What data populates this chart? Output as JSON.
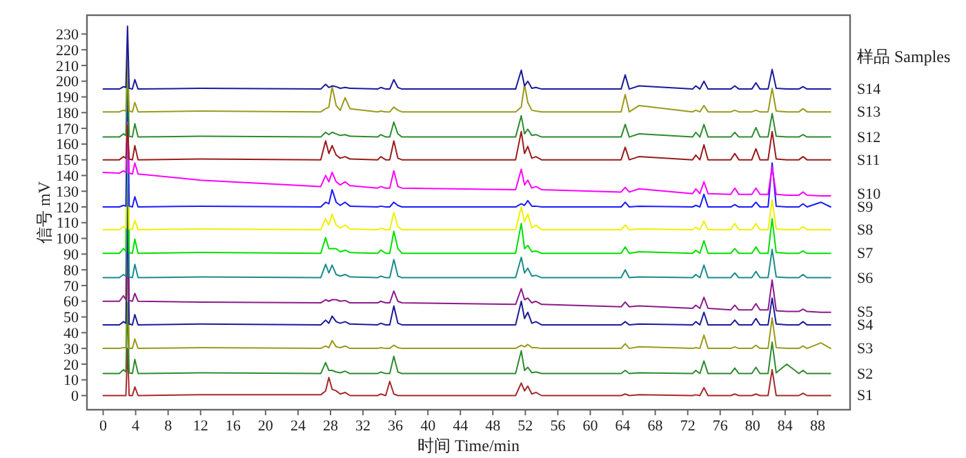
{
  "chart_data": {
    "type": "line",
    "xlabel": "时间 Time/min",
    "ylabel": "信号 mV",
    "legend_title": "样品 Samples",
    "legend": "right",
    "xlim": [
      -2,
      92
    ],
    "ylim": [
      -9,
      242
    ],
    "xticks": [
      0,
      4,
      8,
      12,
      16,
      20,
      24,
      28,
      32,
      36,
      40,
      44,
      48,
      52,
      56,
      60,
      64,
      68,
      72,
      76,
      80,
      84,
      88
    ],
    "yticks": [
      0,
      10,
      20,
      30,
      40,
      50,
      60,
      70,
      80,
      90,
      100,
      110,
      120,
      130,
      140,
      150,
      160,
      170,
      180,
      190,
      200,
      210,
      220,
      230
    ],
    "x": [
      0,
      2.0,
      2.5,
      2.8,
      3.0,
      3.2,
      3.6,
      3.9,
      4.3,
      12,
      26.8,
      27.4,
      27.8,
      28.2,
      28.7,
      29.2,
      29.8,
      30.4,
      33.8,
      34.2,
      34.8,
      35.3,
      35.8,
      36.3,
      36.8,
      50.8,
      51.5,
      51.9,
      52.3,
      52.8,
      53.3,
      54,
      63.8,
      64.3,
      64.8,
      66,
      72.6,
      73,
      73.5,
      74,
      74.5,
      77.3,
      77.8,
      78.3,
      79.9,
      80.4,
      80.9,
      81.9,
      82.4,
      82.9,
      84.2,
      85.7,
      86.2,
      86.7,
      88.4,
      89.6
    ],
    "series": [
      {
        "name": "S1",
        "color": "#a52a2a",
        "values": [
          0,
          0,
          0,
          0,
          30,
          0,
          0,
          5.5,
          0,
          0.5,
          0.5,
          3,
          11.5,
          4,
          3,
          1,
          2,
          0,
          0,
          1,
          0,
          9,
          1,
          0,
          0,
          0,
          8,
          3,
          6,
          1,
          2,
          0,
          0,
          1,
          0,
          0.5,
          0,
          0.5,
          0,
          5,
          0,
          0,
          1,
          0,
          0,
          1,
          0,
          0,
          16.5,
          0,
          0,
          0,
          1.5,
          0,
          0,
          0
        ]
      },
      {
        "name": "S2",
        "color": "#2e8b2e",
        "values": [
          14,
          14,
          16.5,
          15,
          59,
          14.5,
          14,
          23,
          14,
          14.5,
          14,
          21,
          16,
          16,
          15,
          14.5,
          15.5,
          14,
          14,
          15,
          14,
          14,
          25,
          15,
          14,
          14,
          28.5,
          16,
          18,
          14.5,
          15,
          14,
          14,
          16,
          14,
          14.5,
          14,
          16,
          14,
          22,
          14,
          14,
          17.5,
          14,
          14,
          18,
          14,
          14,
          34,
          14.5,
          20,
          14,
          16,
          14,
          14,
          14
        ]
      },
      {
        "name": "S3",
        "color": "#9a9a1a",
        "values": [
          30,
          30,
          30.5,
          30.5,
          90,
          30,
          30,
          36,
          30,
          30.5,
          30,
          31.5,
          30.5,
          35,
          31,
          30.5,
          31.5,
          30,
          30,
          30.5,
          30,
          30,
          32,
          30.5,
          30,
          30,
          32,
          31,
          32.5,
          30.5,
          30.5,
          30,
          30,
          33,
          30,
          31,
          30,
          30.5,
          30,
          38.5,
          30,
          30,
          31,
          30,
          30,
          32,
          30,
          30,
          49.5,
          30.5,
          30,
          30,
          31.5,
          30,
          33.5,
          30
        ]
      },
      {
        "name": "S4",
        "color": "#1a1a9a",
        "values": [
          45,
          45,
          47,
          46,
          120,
          45.5,
          45,
          51.5,
          45,
          45.5,
          45,
          48,
          46,
          50.5,
          47,
          46,
          47,
          45.5,
          45,
          46,
          45,
          45,
          57,
          46,
          45,
          45,
          60,
          49,
          53,
          46,
          47,
          45,
          45,
          47,
          45,
          45.5,
          45,
          47,
          45,
          53,
          45,
          45,
          48,
          45,
          45,
          49,
          45,
          45,
          62,
          45.5,
          45,
          45,
          47,
          45,
          45,
          45
        ]
      },
      {
        "name": "S5",
        "color": "#8b1a8b",
        "values": [
          60,
          60,
          63.5,
          61,
          150,
          60.5,
          60,
          65,
          60,
          59.5,
          59,
          61,
          60,
          61,
          61,
          60,
          60.5,
          59,
          59,
          60,
          59,
          59,
          66.5,
          60,
          59,
          58,
          68,
          61,
          62,
          59,
          60,
          58,
          56.5,
          59.5,
          56.5,
          57,
          55.5,
          57.5,
          55.5,
          62.5,
          55.5,
          54.5,
          57.5,
          54.5,
          54.5,
          58.5,
          54.5,
          54.5,
          73.5,
          54,
          53.5,
          53.5,
          55,
          53.5,
          53,
          53
        ]
      },
      {
        "name": "S6",
        "color": "#1a8b8b",
        "values": [
          75,
          75,
          77,
          76,
          180,
          75.5,
          75,
          83.5,
          75,
          75.5,
          75,
          83.5,
          78,
          83,
          77,
          76,
          77,
          75.5,
          75,
          76,
          75,
          75,
          86.5,
          76,
          75,
          75,
          88,
          78,
          81,
          76,
          76.5,
          75,
          75,
          80,
          75,
          75.5,
          75,
          77,
          75,
          83,
          75,
          75,
          78,
          75,
          75,
          79,
          75,
          75,
          93,
          75.5,
          75,
          75,
          77,
          75,
          75,
          75
        ]
      },
      {
        "name": "S7",
        "color": "#00e000",
        "values": [
          90.5,
          90.5,
          93.5,
          92,
          210.5,
          91,
          90.5,
          99.5,
          90.5,
          91,
          90.5,
          100.5,
          93.5,
          93.5,
          93.5,
          91.5,
          92.5,
          91,
          90.5,
          92.5,
          90.5,
          90.5,
          104.5,
          93.5,
          90.5,
          90.5,
          109.5,
          93.5,
          95.5,
          91.5,
          92,
          90.5,
          90.5,
          94.5,
          90.5,
          91.5,
          90.5,
          92.5,
          90.5,
          98.5,
          90.5,
          90.5,
          93.5,
          90.5,
          90.5,
          94.5,
          90.5,
          90.5,
          112.5,
          91,
          90.5,
          90.5,
          92,
          90.5,
          90.5,
          90.5
        ]
      },
      {
        "name": "S8",
        "color": "#f0f000",
        "values": [
          105.5,
          105.5,
          107.5,
          106.5,
          205.5,
          106,
          105.5,
          111.5,
          105.5,
          106,
          105.5,
          112.5,
          108.5,
          115.5,
          108.5,
          106.5,
          108.5,
          106,
          105.5,
          106.5,
          105.5,
          105.5,
          116.5,
          107.5,
          105.5,
          105.5,
          120,
          110.5,
          115.5,
          106.5,
          108.5,
          105.5,
          105.5,
          108.5,
          105.5,
          106,
          105.5,
          107,
          105.5,
          111,
          105.5,
          105.5,
          109.5,
          105.5,
          105.5,
          109.5,
          105.5,
          105.5,
          124.5,
          106,
          105.5,
          105.5,
          107.5,
          105.5,
          105.5,
          105.5
        ]
      },
      {
        "name": "S9",
        "color": "#1a1aff",
        "values": [
          120,
          120,
          121,
          120.5,
          200,
          120.5,
          120,
          126.5,
          120,
          120.5,
          120,
          123,
          122,
          131,
          123,
          121,
          123,
          120.5,
          120,
          120.5,
          120,
          120,
          123,
          121,
          120,
          120,
          122,
          121,
          124,
          120.5,
          120.5,
          120,
          120,
          123,
          120,
          120.5,
          120,
          121,
          120,
          128,
          120,
          120,
          121.5,
          120,
          120,
          123,
          120,
          120,
          148,
          120.5,
          120,
          120,
          122,
          120,
          123,
          120
        ]
      },
      {
        "name": "S10",
        "color": "#ff00ff",
        "values": [
          142,
          141.5,
          143,
          142,
          174,
          141.5,
          141,
          148,
          141,
          137,
          133,
          140,
          136,
          142,
          136,
          134,
          136,
          133.5,
          132,
          133,
          132,
          132,
          143,
          133,
          132,
          131,
          144,
          134,
          137,
          132,
          133,
          131,
          129.5,
          132.5,
          129.5,
          131.5,
          128.5,
          131.5,
          128.5,
          136,
          128.5,
          128,
          132,
          128,
          128,
          132,
          128,
          128,
          145.5,
          128,
          127.5,
          127.5,
          129.5,
          127.5,
          127,
          127
        ]
      },
      {
        "name": "S11",
        "color": "#9a1a1a",
        "values": [
          150,
          150,
          152,
          151,
          172,
          150.5,
          150,
          159,
          150,
          150.5,
          150,
          162,
          154,
          159,
          153,
          151,
          152,
          150.5,
          150,
          152,
          150,
          150,
          162,
          151,
          150,
          150,
          168,
          154,
          158.5,
          151,
          152,
          150,
          150,
          158,
          150,
          152,
          150,
          153,
          150,
          159.5,
          150,
          150,
          154,
          150,
          150,
          157,
          150,
          150,
          168,
          150.5,
          150,
          150,
          152,
          150,
          150,
          150
        ]
      },
      {
        "name": "S12",
        "color": "#2e8b2e",
        "values": [
          164.5,
          164.5,
          166.5,
          165.5,
          210,
          165,
          164.5,
          173,
          164.5,
          165,
          164.5,
          167.5,
          166,
          167.5,
          166.5,
          165.5,
          166,
          165,
          164.5,
          166,
          164.5,
          164.5,
          174,
          166.5,
          164.5,
          164.5,
          178,
          166.5,
          169.5,
          165.5,
          166,
          164.5,
          164.5,
          172.5,
          164.5,
          166.5,
          164.5,
          167.5,
          164.5,
          172.5,
          164.5,
          164.5,
          167.5,
          164.5,
          164.5,
          170.5,
          164.5,
          164.5,
          179.5,
          165,
          164.5,
          164.5,
          166,
          164.5,
          164.5,
          164.5
        ]
      },
      {
        "name": "S13",
        "color": "#9a9a1a",
        "values": [
          180.5,
          180.5,
          181.5,
          181,
          217,
          181,
          180.5,
          186.5,
          180.5,
          181,
          180.5,
          182.5,
          183.5,
          196.5,
          184.5,
          181.5,
          189.5,
          182.5,
          180.5,
          181,
          180.5,
          180.5,
          183.5,
          181.5,
          180.5,
          180.5,
          183.5,
          198,
          186.5,
          181.5,
          181,
          180.5,
          180.5,
          191.5,
          180.5,
          184.5,
          180.5,
          181.5,
          180.5,
          184.5,
          180.5,
          180.5,
          181.5,
          180.5,
          180.5,
          181.5,
          180.5,
          180.5,
          195.5,
          181,
          180.5,
          180.5,
          182.5,
          180.5,
          180.5,
          180.5
        ]
      },
      {
        "name": "S14",
        "color": "#1a1a9a",
        "values": [
          195,
          195,
          196.5,
          196,
          235,
          195.5,
          195,
          201,
          195,
          195.5,
          195,
          198,
          196,
          197,
          196.5,
          195.5,
          196,
          195.5,
          195,
          196,
          195,
          195,
          201,
          196,
          195,
          195,
          207,
          197,
          200,
          195.5,
          196,
          195,
          195,
          204,
          195,
          197,
          195,
          197,
          195,
          200,
          195,
          195,
          197,
          195,
          195,
          199,
          195,
          195,
          207.5,
          195.5,
          195,
          195,
          196.5,
          195,
          195,
          195
        ]
      }
    ]
  }
}
